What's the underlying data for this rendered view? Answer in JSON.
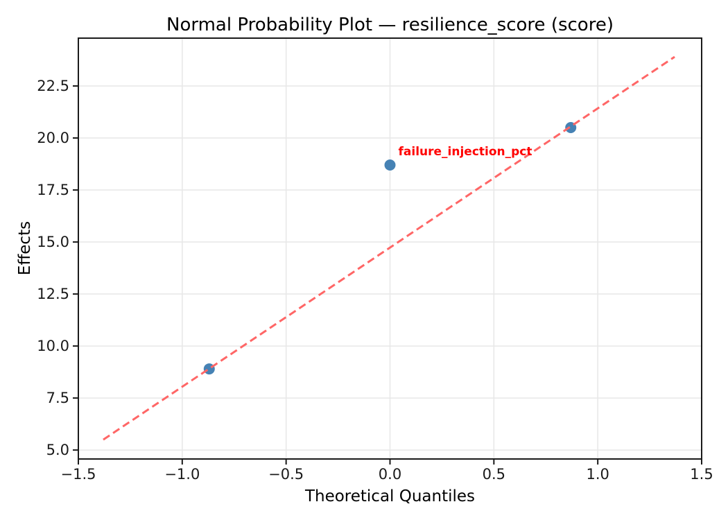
{
  "chart_data": {
    "type": "scatter",
    "title": "Normal Probability Plot — resilience_score (score)",
    "xlabel": "Theoretical Quantiles",
    "ylabel": "Effects",
    "xlim": [
      -1.5,
      1.5
    ],
    "ylim": [
      4.57,
      24.8
    ],
    "grid": true,
    "legend": "none",
    "xticks": {
      "values": [
        -1.5,
        -1.0,
        -0.5,
        0.0,
        0.5,
        1.0,
        1.5
      ],
      "labels": [
        "−1.5",
        "−1.0",
        "−0.5",
        "0.0",
        "0.5",
        "1.0",
        "1.5"
      ]
    },
    "yticks": {
      "values": [
        5.0,
        7.5,
        10.0,
        12.5,
        15.0,
        17.5,
        20.0,
        22.5
      ],
      "labels": [
        "5.0",
        "7.5",
        "10.0",
        "12.5",
        "15.0",
        "17.5",
        "20.0",
        "22.5"
      ]
    },
    "series": [
      {
        "name": "effects-points",
        "type": "scatter",
        "color": "#4682b4",
        "marker": "circle",
        "marker_radius_px": 8,
        "points": [
          {
            "x": -0.87,
            "y": 8.9
          },
          {
            "x": 0.0,
            "y": 18.7
          },
          {
            "x": 0.87,
            "y": 20.5
          }
        ]
      },
      {
        "name": "reference-fit-line",
        "type": "line",
        "style": "dashed",
        "color": "#ff6666",
        "points": [
          {
            "x": -1.38,
            "y": 5.5
          },
          {
            "x": 1.37,
            "y": 23.9
          }
        ]
      }
    ],
    "annotation": {
      "text": "failure_injection_pct",
      "x": 0.0,
      "y": 18.7,
      "color": "#ff0000",
      "bold": true
    },
    "colors": {
      "background": "#ffffff",
      "spine": "#1a1a1a",
      "grid": "#e7e7e7",
      "tick": "#1a1a1a",
      "text": "#000000"
    }
  }
}
